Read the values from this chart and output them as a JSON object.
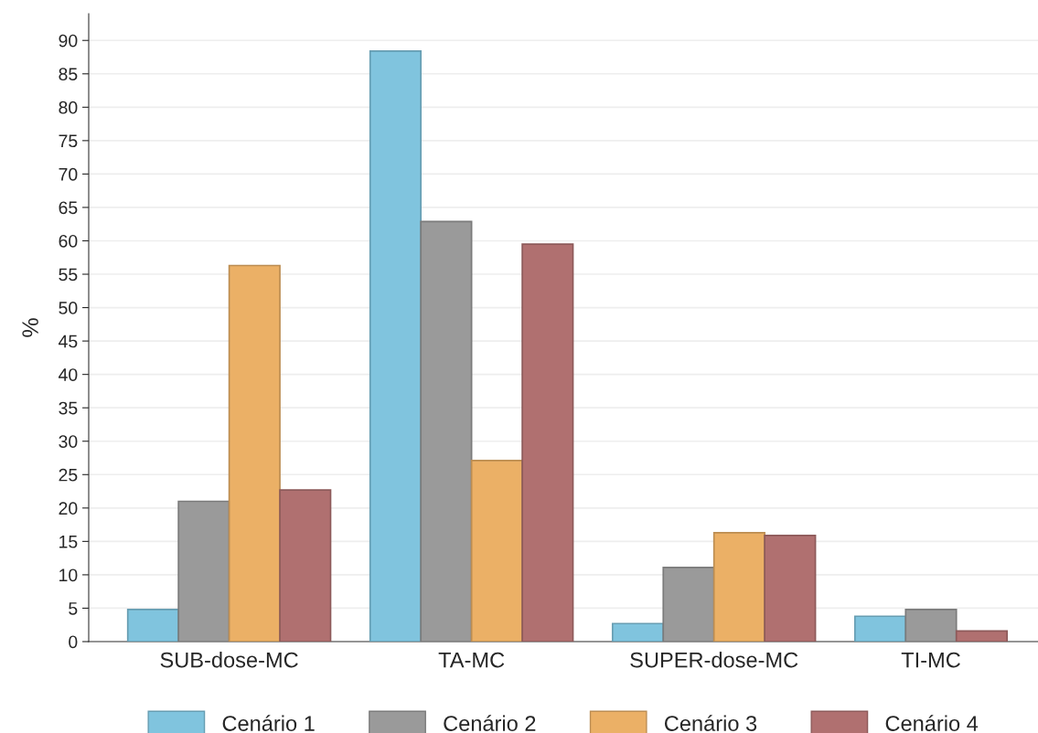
{
  "chart_data": {
    "type": "bar",
    "ylabel": "%",
    "categories": [
      "SUB-dose-MC",
      "TA-MC",
      "SUPER-dose-MC",
      "TI-MC"
    ],
    "series": [
      {
        "name": "Cenário 1",
        "color": "#80c4de",
        "values": [
          4.8,
          88.4,
          2.7,
          3.8
        ]
      },
      {
        "name": "Cenário 2",
        "color": "#9a9a9a",
        "values": [
          21.0,
          62.9,
          11.1,
          4.8
        ]
      },
      {
        "name": "Cenário 3",
        "color": "#ebb066",
        "values": [
          56.3,
          27.1,
          16.3,
          null
        ]
      },
      {
        "name": "Cenário 4",
        "color": "#b07070",
        "values": [
          22.7,
          59.5,
          15.9,
          1.6
        ]
      }
    ],
    "ylim": [
      0,
      94
    ],
    "yticks": [
      0,
      5,
      10,
      15,
      20,
      25,
      30,
      35,
      40,
      45,
      50,
      55,
      60,
      65,
      70,
      75,
      80,
      85,
      90
    ],
    "grid": "y",
    "legend": "bottom"
  }
}
